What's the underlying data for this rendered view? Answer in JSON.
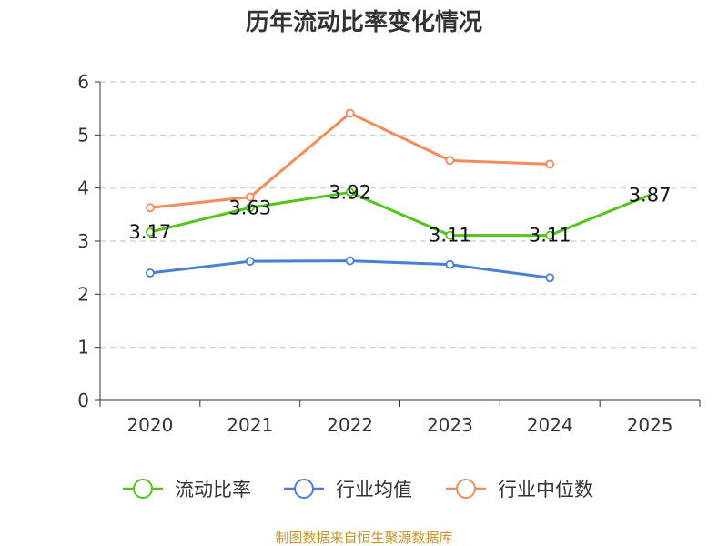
{
  "chart_data": {
    "type": "line",
    "title": "历年流动比率变化情况",
    "xlabel": "",
    "ylabel": "",
    "categories": [
      "2020",
      "2021",
      "2022",
      "2023",
      "2024",
      "2025"
    ],
    "ylim": [
      0,
      6
    ],
    "yticks": [
      "0",
      "1",
      "2",
      "3",
      "4",
      "5",
      "6"
    ],
    "grid": true,
    "legend_position": "bottom",
    "series": [
      {
        "name": "流动比率",
        "color": "#52c41a",
        "values": [
          3.17,
          3.63,
          3.92,
          3.11,
          3.11,
          3.87
        ],
        "labels": [
          "3.17",
          "3.63",
          "3.92",
          "3.11",
          "3.11",
          "3.87"
        ],
        "show_markers": [
          true,
          true,
          true,
          true,
          true,
          false
        ]
      },
      {
        "name": "行业均值",
        "color": "#4a7fd6",
        "values": [
          2.4,
          2.62,
          2.63,
          2.56,
          2.31,
          null
        ],
        "show_markers": [
          true,
          true,
          true,
          true,
          true,
          false
        ]
      },
      {
        "name": "行业中位数",
        "color": "#f28c5a",
        "values": [
          3.63,
          3.83,
          5.41,
          4.52,
          4.45,
          null
        ],
        "show_markers": [
          true,
          true,
          true,
          true,
          true,
          false
        ]
      }
    ]
  },
  "source_text": "制图数据来自恒生聚源数据库"
}
